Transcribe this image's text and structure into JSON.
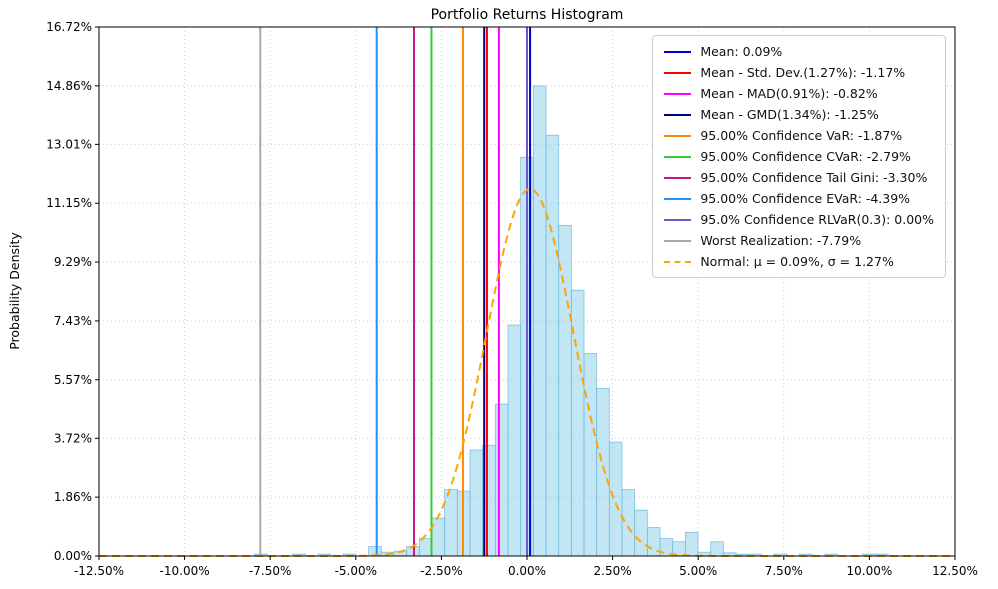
{
  "chart_data": {
    "type": "bar",
    "subtype": "histogram-with-normal-fit",
    "title": "Portfolio Returns Histogram",
    "xlabel": "",
    "ylabel": "Probability Density",
    "xlim": [
      -12.5,
      12.5
    ],
    "ylim": [
      0,
      16.72
    ],
    "grid": "dotted",
    "legend_position": "upper right",
    "x_tick_values": [
      -12.5,
      -10.0,
      -7.5,
      -5.0,
      -2.5,
      0.0,
      2.5,
      5.0,
      7.5,
      10.0,
      12.5
    ],
    "x_ticks": [
      "-12.50%",
      "-10.00%",
      "-7.50%",
      "-5.00%",
      "-2.50%",
      "0.00%",
      "2.50%",
      "5.00%",
      "7.50%",
      "10.00%",
      "12.50%"
    ],
    "y_tick_values": [
      0.0,
      1.86,
      3.72,
      5.57,
      7.43,
      9.29,
      11.15,
      13.01,
      14.86,
      16.72
    ],
    "y_ticks": [
      "0.00%",
      "1.86%",
      "3.72%",
      "5.57%",
      "7.43%",
      "9.29%",
      "11.15%",
      "13.01%",
      "14.86%",
      "16.72%"
    ],
    "histogram": {
      "name": "portfolio-returns-histogram",
      "bin_start": -7.955,
      "bin_width": 0.37,
      "fill": "rgba(135,206,235,0.5)",
      "edge": "rgba(110,185,220,0.85)",
      "heights": [
        0.06,
        0,
        0,
        0.06,
        0,
        0.06,
        0,
        0.06,
        0,
        0.3,
        0.12,
        0.15,
        0.3,
        0.55,
        1.2,
        2.1,
        2.05,
        3.35,
        3.5,
        4.8,
        7.3,
        12.6,
        14.86,
        13.3,
        10.45,
        8.4,
        6.4,
        5.3,
        3.6,
        2.1,
        1.45,
        0.9,
        0.55,
        0.45,
        0.75,
        0.12,
        0.45,
        0.1,
        0.06,
        0.06,
        0,
        0.06,
        0,
        0.06,
        0,
        0.06,
        0,
        0,
        0.06,
        0.06
      ]
    },
    "normal_curve": {
      "label": "Normal: μ = 0.09%, σ = 1.27%",
      "mu": 0.09,
      "sigma": 1.27,
      "peak": 11.6,
      "color": "#FFA500",
      "style": "dashed"
    },
    "vlines": [
      {
        "name": "mean-line",
        "label": "Mean: 0.09%",
        "x": 0.09,
        "color": "#0000CD"
      },
      {
        "name": "std-dev-line",
        "label": "Mean - Std. Dev.(1.27%): -1.17%",
        "x": -1.17,
        "color": "#FF0000"
      },
      {
        "name": "mad-line",
        "label": "Mean - MAD(0.91%): -0.82%",
        "x": -0.82,
        "color": "#FF00FF"
      },
      {
        "name": "gmd-line",
        "label": "Mean - GMD(1.34%): -1.25%",
        "x": -1.25,
        "color": "#000080"
      },
      {
        "name": "var-line",
        "label": "95.00% Confidence VaR: -1.87%",
        "x": -1.87,
        "color": "#FF8C00"
      },
      {
        "name": "cvar-line",
        "label": "95.00% Confidence CVaR: -2.79%",
        "x": -2.79,
        "color": "#32CD32"
      },
      {
        "name": "tail-gini-line",
        "label": "95.00% Confidence Tail Gini: -3.30%",
        "x": -3.3,
        "color": "#C71585"
      },
      {
        "name": "evar-line",
        "label": "95.00% Confidence EVaR: -4.39%",
        "x": -4.39,
        "color": "#1E90FF"
      },
      {
        "name": "rlvar-line",
        "label": "95.0% Confidence RLVaR(0.3): 0.00%",
        "x": 0.0,
        "color": "#6A5ACD"
      },
      {
        "name": "worst-line",
        "label": "Worst Realization: -7.79%",
        "x": -7.79,
        "color": "#A9A9A9"
      }
    ]
  }
}
